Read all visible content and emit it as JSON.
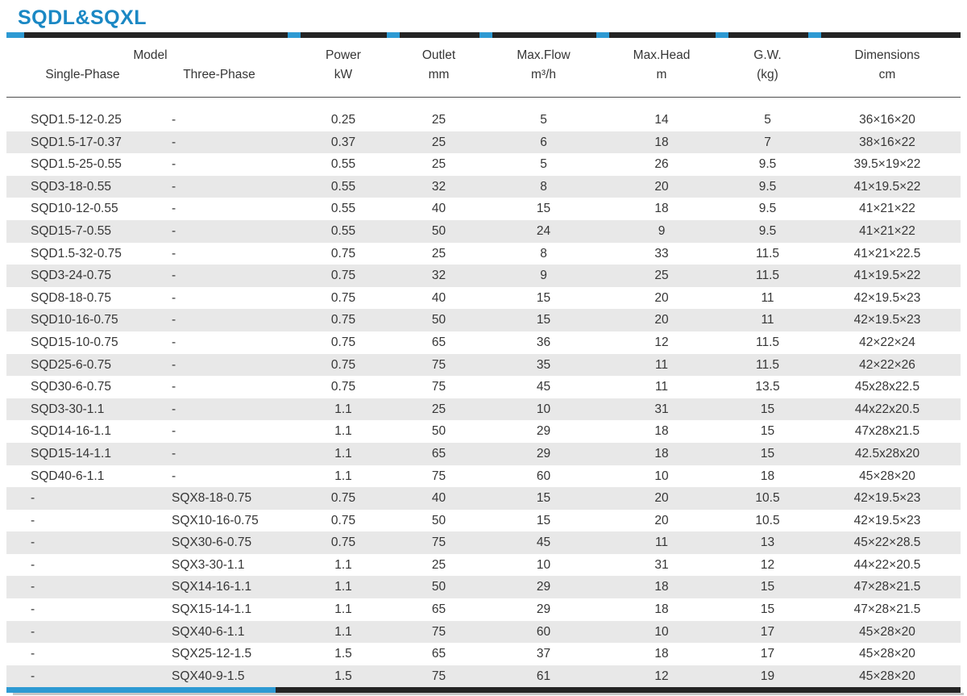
{
  "title": "SQDL&SQXL",
  "colors": {
    "title_blue": "#1b88c4",
    "bar_accent_blue": "#2d9ad3",
    "bar_black": "#242424",
    "row_stripe_gray": "#e8e8e8",
    "text": "#363636"
  },
  "table": {
    "header": {
      "model_group": "Model",
      "single_phase": "Single-Phase",
      "three_phase": "Three-Phase",
      "columns": [
        {
          "label": "Power",
          "unit": "kW"
        },
        {
          "label": "Outlet",
          "unit": "mm"
        },
        {
          "label": "Max.Flow",
          "unit": "m³/h"
        },
        {
          "label": "Max.Head",
          "unit": "m"
        },
        {
          "label": "G.W.",
          "unit": "(kg)"
        },
        {
          "label": "Dimensions",
          "unit": "cm"
        }
      ]
    },
    "rows": [
      [
        "SQD1.5-12-0.25",
        "-",
        "0.25",
        "25",
        "5",
        "14",
        "5",
        "36×16×20"
      ],
      [
        "SQD1.5-17-0.37",
        "-",
        "0.37",
        "25",
        "6",
        "18",
        "7",
        "38×16×22"
      ],
      [
        "SQD1.5-25-0.55",
        "-",
        "0.55",
        "25",
        "5",
        "26",
        "9.5",
        "39.5×19×22"
      ],
      [
        "SQD3-18-0.55",
        "-",
        "0.55",
        "32",
        "8",
        "20",
        "9.5",
        "41×19.5×22"
      ],
      [
        "SQD10-12-0.55",
        "-",
        "0.55",
        "40",
        "15",
        "18",
        "9.5",
        "41×21×22"
      ],
      [
        "SQD15-7-0.55",
        "-",
        "0.55",
        "50",
        "24",
        "9",
        "9.5",
        "41×21×22"
      ],
      [
        "SQD1.5-32-0.75",
        "-",
        "0.75",
        "25",
        "8",
        "33",
        "11.5",
        "41×21×22.5"
      ],
      [
        "SQD3-24-0.75",
        "-",
        "0.75",
        "32",
        "9",
        "25",
        "11.5",
        "41×19.5×22"
      ],
      [
        "SQD8-18-0.75",
        "-",
        "0.75",
        "40",
        "15",
        "20",
        "11",
        "42×19.5×23"
      ],
      [
        "SQD10-16-0.75",
        "-",
        "0.75",
        "50",
        "15",
        "20",
        "11",
        "42×19.5×23"
      ],
      [
        "SQD15-10-0.75",
        "-",
        "0.75",
        "65",
        "36",
        "12",
        "11.5",
        "42×22×24"
      ],
      [
        "SQD25-6-0.75",
        "-",
        "0.75",
        "75",
        "35",
        "11",
        "11.5",
        "42×22×26"
      ],
      [
        "SQD30-6-0.75",
        "-",
        "0.75",
        "75",
        "45",
        "11",
        "13.5",
        "45x28x22.5"
      ],
      [
        "SQD3-30-1.1",
        "-",
        "1.1",
        "25",
        "10",
        "31",
        "15",
        "44x22x20.5"
      ],
      [
        "SQD14-16-1.1",
        "-",
        "1.1",
        "50",
        "29",
        "18",
        "15",
        "47x28x21.5"
      ],
      [
        "SQD15-14-1.1",
        "-",
        "1.1",
        "65",
        "29",
        "18",
        "15",
        "42.5x28x20"
      ],
      [
        "SQD40-6-1.1",
        "-",
        "1.1",
        "75",
        "60",
        "10",
        "18",
        "45×28×20"
      ],
      [
        "-",
        "SQX8-18-0.75",
        "0.75",
        "40",
        "15",
        "20",
        "10.5",
        "42×19.5×23"
      ],
      [
        "-",
        "SQX10-16-0.75",
        "0.75",
        "50",
        "15",
        "20",
        "10.5",
        "42×19.5×23"
      ],
      [
        "-",
        "SQX30-6-0.75",
        "0.75",
        "75",
        "45",
        "11",
        "13",
        "45×22×28.5"
      ],
      [
        "-",
        "SQX3-30-1.1",
        "1.1",
        "25",
        "10",
        "31",
        "12",
        "44×22×20.5"
      ],
      [
        "-",
        "SQX14-16-1.1",
        "1.1",
        "50",
        "29",
        "18",
        "15",
        "47×28×21.5"
      ],
      [
        "-",
        "SQX15-14-1.1",
        "1.1",
        "65",
        "29",
        "18",
        "15",
        "47×28×21.5"
      ],
      [
        "-",
        "SQX40-6-1.1",
        "1.1",
        "75",
        "60",
        "10",
        "17",
        "45×28×20"
      ],
      [
        "-",
        "SQX25-12-1.5",
        "1.5",
        "65",
        "37",
        "18",
        "17",
        "45×28×20"
      ],
      [
        "-",
        "SQX40-9-1.5",
        "1.5",
        "75",
        "61",
        "12",
        "19",
        "45×28×20"
      ]
    ]
  }
}
